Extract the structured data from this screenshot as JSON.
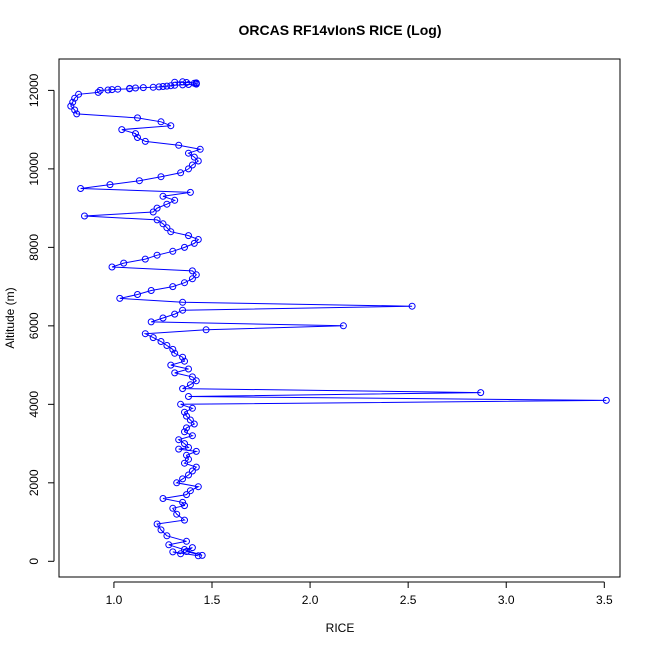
{
  "chart_data": {
    "type": "line",
    "title": "ORCAS RF14vIonS RICE (Log)",
    "xlabel": "RICE",
    "ylabel": "Altitude (m)",
    "xlim": [
      0.72,
      3.58
    ],
    "ylim": [
      -400,
      12800
    ],
    "xticks": [
      1.0,
      1.5,
      2.0,
      2.5,
      3.0,
      3.5
    ],
    "xtick_labels": [
      "1.0",
      "1.5",
      "2.0",
      "2.5",
      "3.0",
      "3.5"
    ],
    "yticks": [
      0,
      2000,
      4000,
      6000,
      8000,
      10000,
      12000
    ],
    "ytick_labels": [
      "0",
      "2000",
      "4000",
      "6000",
      "8000",
      "10000",
      "12000"
    ],
    "grid": false,
    "legend": "none",
    "color": "#0000ff",
    "marker": "open-circle",
    "series": [
      {
        "x": [
          1.43,
          1.3,
          1.34,
          1.36,
          1.4,
          1.37,
          1.45,
          1.28,
          1.37,
          1.27,
          1.24,
          1.22,
          1.36,
          1.32,
          1.3,
          1.36,
          1.35,
          1.25,
          1.37,
          1.39,
          1.43,
          1.32,
          1.35,
          1.38,
          1.4,
          1.42,
          1.36,
          1.38,
          1.37,
          1.42,
          1.33,
          1.38,
          1.36,
          1.33,
          1.4,
          1.36,
          1.37,
          1.41,
          1.39,
          1.37,
          1.36,
          1.4,
          1.34,
          3.51,
          1.38,
          2.87,
          1.35,
          1.39,
          1.42,
          1.4,
          1.31,
          1.38,
          1.29,
          1.36,
          1.35,
          1.31,
          1.3,
          1.27,
          1.24,
          1.2,
          1.16,
          1.47,
          2.17,
          1.19,
          1.25,
          1.31,
          1.35,
          2.52,
          1.35,
          1.03,
          1.12,
          1.19,
          1.3,
          1.36,
          1.4,
          1.42,
          1.4,
          0.99,
          1.05,
          1.16,
          1.22,
          1.3,
          1.36,
          1.41,
          1.43,
          1.38,
          1.29,
          1.27,
          1.25,
          1.22,
          0.85,
          1.2,
          1.22,
          1.27,
          1.31,
          1.25,
          1.39,
          0.83,
          0.98,
          1.13,
          1.24,
          1.34,
          1.38,
          1.4,
          1.43,
          1.41,
          1.38,
          1.44,
          1.33,
          1.16,
          1.12,
          1.11,
          1.04,
          1.29,
          1.24,
          1.12,
          0.81,
          0.8,
          0.78,
          0.79,
          0.8,
          0.82,
          0.92,
          0.93,
          0.97,
          0.99,
          1.02,
          1.08,
          1.08,
          1.11,
          1.15,
          1.2,
          1.23,
          1.25,
          1.27,
          1.29,
          1.31,
          1.35,
          1.38,
          1.42,
          1.42,
          1.41,
          1.42,
          1.37,
          1.31,
          1.35
        ],
        "y": [
          140,
          240,
          190,
          300,
          350,
          250,
          150,
          420,
          510,
          650,
          800,
          950,
          1050,
          1200,
          1350,
          1420,
          1500,
          1600,
          1700,
          1800,
          1900,
          2000,
          2100,
          2200,
          2300,
          2400,
          2500,
          2600,
          2700,
          2800,
          2860,
          2900,
          3000,
          3100,
          3200,
          3300,
          3400,
          3500,
          3600,
          3700,
          3800,
          3900,
          4000,
          4100,
          4200,
          4300,
          4400,
          4500,
          4600,
          4700,
          4800,
          4900,
          5000,
          5100,
          5200,
          5300,
          5400,
          5500,
          5600,
          5700,
          5800,
          5900,
          6000,
          6100,
          6200,
          6300,
          6400,
          6500,
          6600,
          6700,
          6800,
          6900,
          7000,
          7100,
          7200,
          7300,
          7400,
          7500,
          7600,
          7700,
          7800,
          7900,
          8000,
          8100,
          8200,
          8300,
          8400,
          8500,
          8600,
          8700,
          8800,
          8900,
          9000,
          9100,
          9200,
          9300,
          9400,
          9500,
          9600,
          9700,
          9800,
          9900,
          10000,
          10100,
          10200,
          10300,
          10400,
          10500,
          10600,
          10700,
          10800,
          10900,
          11000,
          11100,
          11200,
          11300,
          11400,
          11500,
          11600,
          11700,
          11800,
          11900,
          11950,
          12000,
          12010,
          12020,
          12030,
          12040,
          12050,
          12060,
          12070,
          12080,
          12090,
          12100,
          12110,
          12120,
          12130,
          12140,
          12150,
          12160,
          12170,
          12180,
          12190,
          12200,
          12210,
          12220
        ]
      }
    ]
  }
}
